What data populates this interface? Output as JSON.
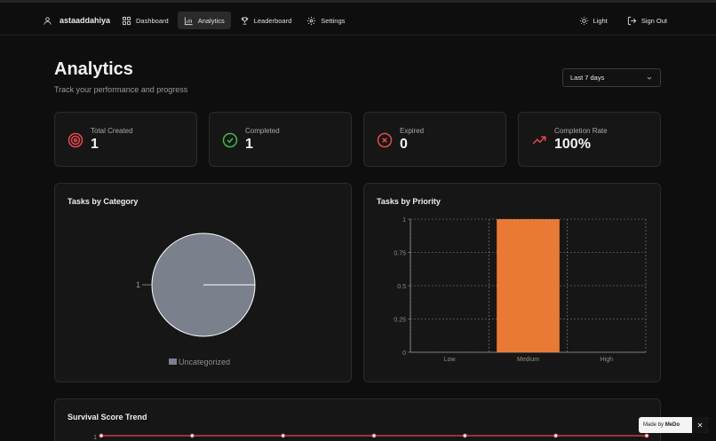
{
  "user": {
    "name": "astaaddahiya",
    "icon": "user-icon"
  },
  "nav": {
    "items": [
      {
        "label": "Dashboard",
        "icon": "dashboard-icon"
      },
      {
        "label": "Analytics",
        "icon": "chart-icon",
        "active": true
      },
      {
        "label": "Leaderboard",
        "icon": "trophy-icon"
      },
      {
        "label": "Settings",
        "icon": "gear-icon"
      }
    ],
    "theme_label": "Light",
    "signout_label": "Sign Out"
  },
  "page": {
    "title": "Analytics",
    "subtitle": "Track your performance and progress"
  },
  "filter": {
    "selected": "Last 7 days"
  },
  "stats": [
    {
      "label": "Total Created",
      "value": "1",
      "icon": "target-icon",
      "color": "#e5484d"
    },
    {
      "label": "Completed",
      "value": "1",
      "icon": "check-circle-icon",
      "color": "#3fb950"
    },
    {
      "label": "Expired",
      "value": "0",
      "icon": "x-circle-icon",
      "color": "#e5484d"
    },
    {
      "label": "Completion Rate",
      "value": "100%",
      "icon": "trending-up-icon",
      "color": "#e5484d"
    }
  ],
  "chart_data": [
    {
      "type": "pie",
      "title": "Tasks by Category",
      "categories": [
        "Uncategorized"
      ],
      "values": [
        1
      ],
      "data_labels": [
        "1"
      ],
      "colors": [
        "#7a808c"
      ],
      "legend": "bottom"
    },
    {
      "type": "bar",
      "title": "Tasks by Priority",
      "categories": [
        "Low",
        "Medium",
        "High"
      ],
      "values": [
        0,
        1,
        0
      ],
      "ylim": [
        0,
        1
      ],
      "yticks": [
        "0",
        "0.25",
        "0.5",
        "0.75",
        "1"
      ],
      "grid": true,
      "colors": [
        "#e97a35"
      ]
    },
    {
      "type": "line",
      "title": "Survival Score Trend",
      "ytick_visible": "1",
      "values": [
        1,
        1,
        1,
        1,
        1,
        1,
        1
      ],
      "colors": [
        "#e5484d"
      ]
    }
  ],
  "badge": {
    "prefix": "Made by",
    "brand": "MeDo",
    "close": "✕"
  }
}
